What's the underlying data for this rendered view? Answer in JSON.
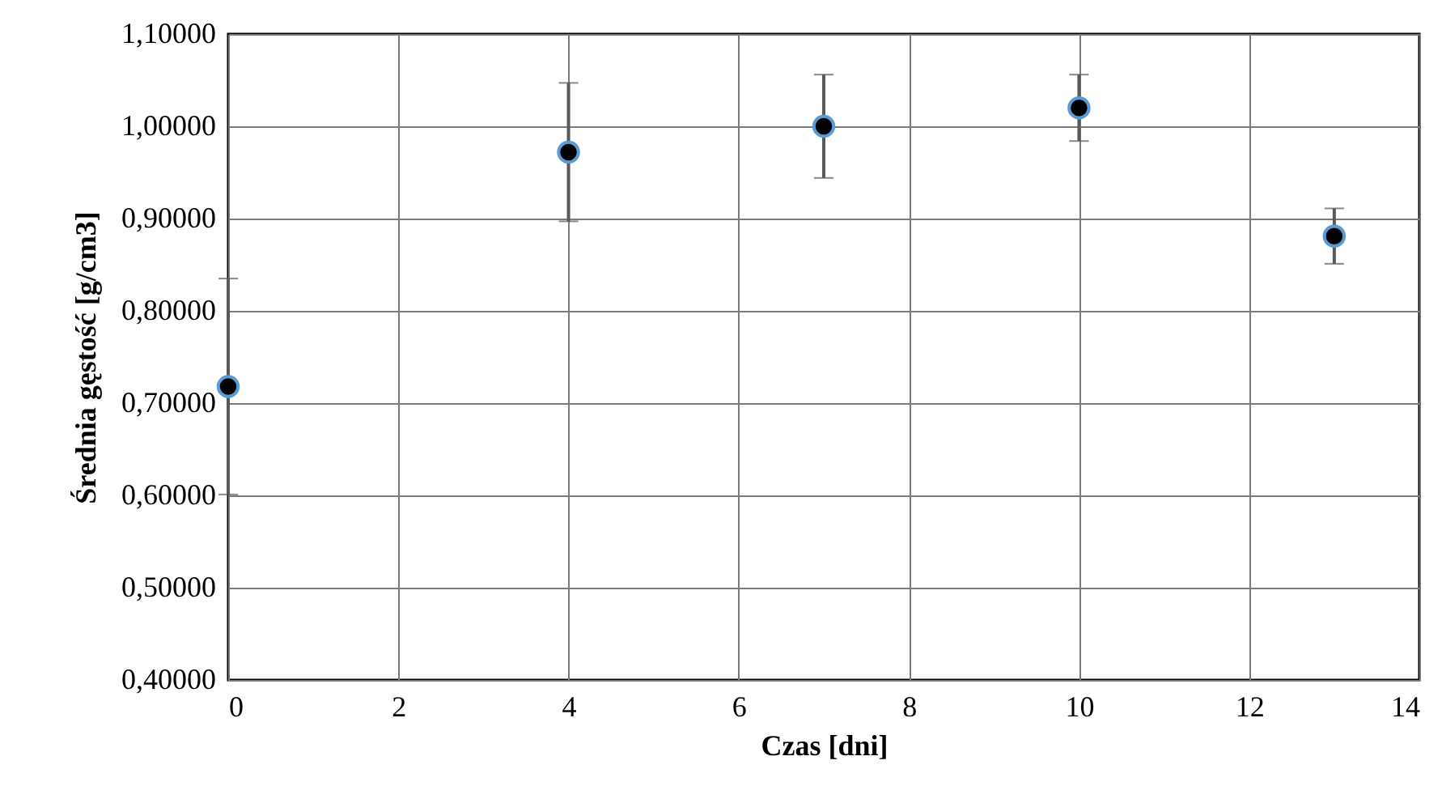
{
  "chart_data": {
    "type": "scatter",
    "xlabel": "Czas [dni]",
    "ylabel": "Średnia  gęstość  [g/cm3]",
    "x": [
      0,
      4,
      7,
      10,
      13
    ],
    "series": [
      {
        "color": "#000000",
        "values": [
          0.718,
          0.972,
          1.0,
          1.02,
          0.881
        ],
        "errors": [
          0.117,
          0.075,
          0.056,
          0.036,
          0.03
        ]
      }
    ],
    "xlim": [
      0,
      14
    ],
    "xticks": [
      0,
      2,
      4,
      6,
      8,
      10,
      12,
      14
    ],
    "ylim": [
      0.4,
      1.1
    ],
    "yticks": [
      {
        "value": 0.4,
        "label": "0,40000"
      },
      {
        "value": 0.5,
        "label": "0,50000"
      },
      {
        "value": 0.6,
        "label": "0,60000"
      },
      {
        "value": 0.7,
        "label": "0,70000"
      },
      {
        "value": 0.8,
        "label": "0,80000"
      },
      {
        "value": 0.9,
        "label": "0,90000"
      },
      {
        "value": 1.0,
        "label": "1,00000"
      },
      {
        "value": 1.1,
        "label": "1,10000"
      }
    ],
    "grid": true,
    "marker": "circle"
  }
}
